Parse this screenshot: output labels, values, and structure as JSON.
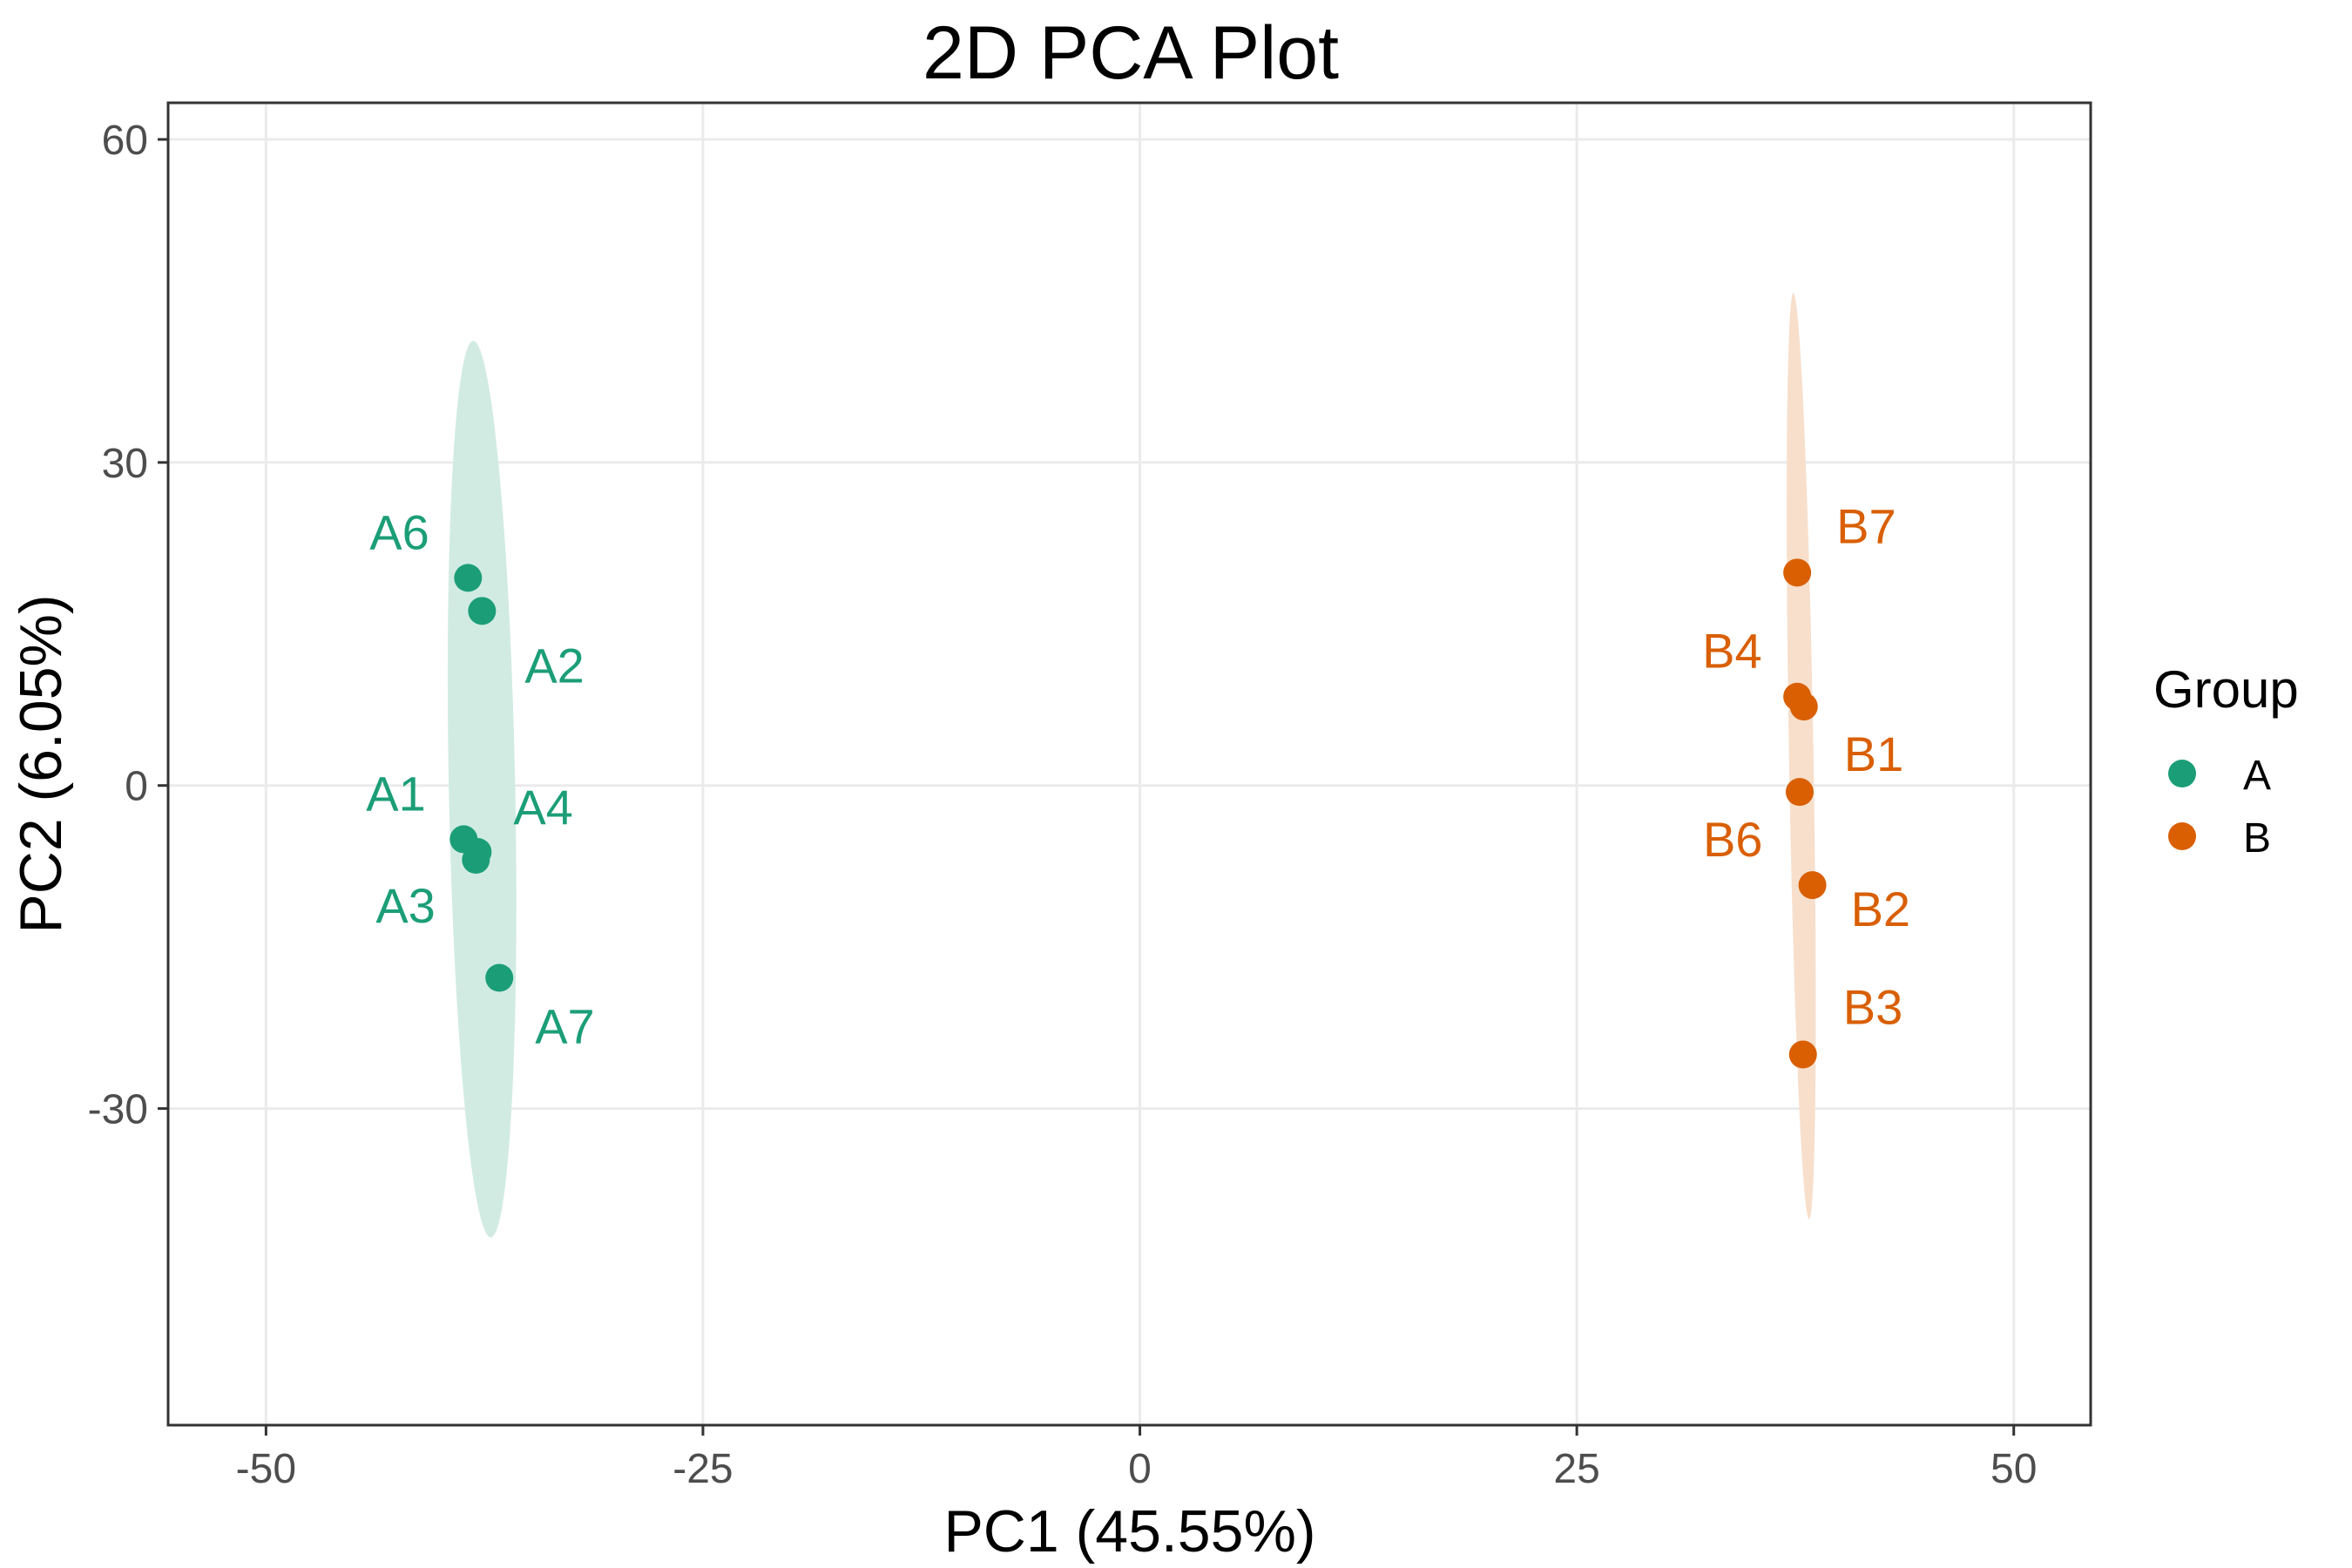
{
  "chart_data": {
    "type": "scatter",
    "title": "2D PCA Plot",
    "xlabel": "PC1 (45.55%)",
    "ylabel": "PC2 (6.05%)",
    "xlim": [
      -55.6,
      54.4
    ],
    "ylim": [
      -59.4,
      63.4
    ],
    "x_ticks": [
      -50,
      -25,
      0,
      25,
      50
    ],
    "x_tick_labels": [
      "-50",
      "-25",
      "0",
      "25",
      "50"
    ],
    "y_ticks": [
      -30,
      0,
      30,
      60
    ],
    "y_tick_labels": [
      "-30",
      "0",
      "30",
      "60"
    ],
    "grid": true,
    "legend": {
      "title": "Group",
      "placement": "right",
      "entries": [
        {
          "label": "A",
          "color": "#1b9e77"
        },
        {
          "label": "B",
          "color": "#d95f02"
        }
      ]
    },
    "series": [
      {
        "name": "A",
        "color": "#1b9e77",
        "ellipse_fill": "#d1ebe3",
        "ellipse": {
          "top": [
            -38.14,
            41.29
          ],
          "bottom": [
            -37.14,
            -41.97
          ],
          "half_width_x": 1.9
        },
        "points": [
          {
            "label": "A6",
            "x": -38.44,
            "y": 19.28
          },
          {
            "label": "A2",
            "x": -37.64,
            "y": 16.21
          },
          {
            "label": "A1",
            "x": -38.69,
            "y": -4.99
          },
          {
            "label": "A4",
            "x": -37.89,
            "y": -6.17
          },
          {
            "label": "A3",
            "x": -37.99,
            "y": -6.9
          },
          {
            "label": "A7",
            "x": -36.65,
            "y": -17.86
          }
        ]
      },
      {
        "name": "B",
        "color": "#d95f02",
        "ellipse_fill": "#f7dfcc",
        "ellipse": {
          "top": [
            37.39,
            45.74
          ],
          "bottom": [
            38.29,
            -40.27
          ],
          "half_width_x": 0.7
        },
        "points": [
          {
            "label": "B7",
            "x": 37.61,
            "y": 19.77
          },
          {
            "label": "B4",
            "x": 37.61,
            "y": 8.25
          },
          {
            "label": "B1",
            "x": 37.99,
            "y": 7.33
          },
          {
            "label": "B6",
            "x": 37.75,
            "y": -0.6
          },
          {
            "label": "B2",
            "x": 38.48,
            "y": -9.25
          },
          {
            "label": "B3",
            "x": 37.94,
            "y": -24.98
          }
        ]
      }
    ]
  }
}
